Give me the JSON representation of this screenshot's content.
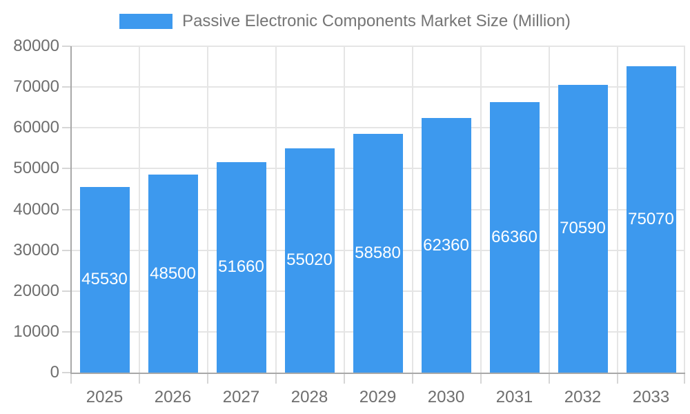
{
  "chart_data": {
    "type": "bar",
    "title": "Passive Electronic Components Market Size (Million)",
    "categories": [
      "2025",
      "2026",
      "2027",
      "2028",
      "2029",
      "2030",
      "2031",
      "2032",
      "2033"
    ],
    "values": [
      45530,
      48500,
      51660,
      55020,
      58580,
      62360,
      66360,
      70590,
      75070
    ],
    "xlabel": "",
    "ylabel": "",
    "ylim": [
      0,
      80000
    ],
    "y_ticks": [
      0,
      10000,
      20000,
      30000,
      40000,
      50000,
      60000,
      70000,
      80000
    ],
    "grid": true,
    "legend_position": "top-center",
    "value_labels_inside_bars": true,
    "colors": {
      "bar": "#3D99EE",
      "value_label_text": "#FFFFFF",
      "axis_text": "#6E6E6E",
      "legend_text": "#757575",
      "gridline": "#E5E5E5",
      "tick": "#D6D6D6",
      "axis_line": "#A8A8A8",
      "background": "#FFFFFF"
    }
  }
}
